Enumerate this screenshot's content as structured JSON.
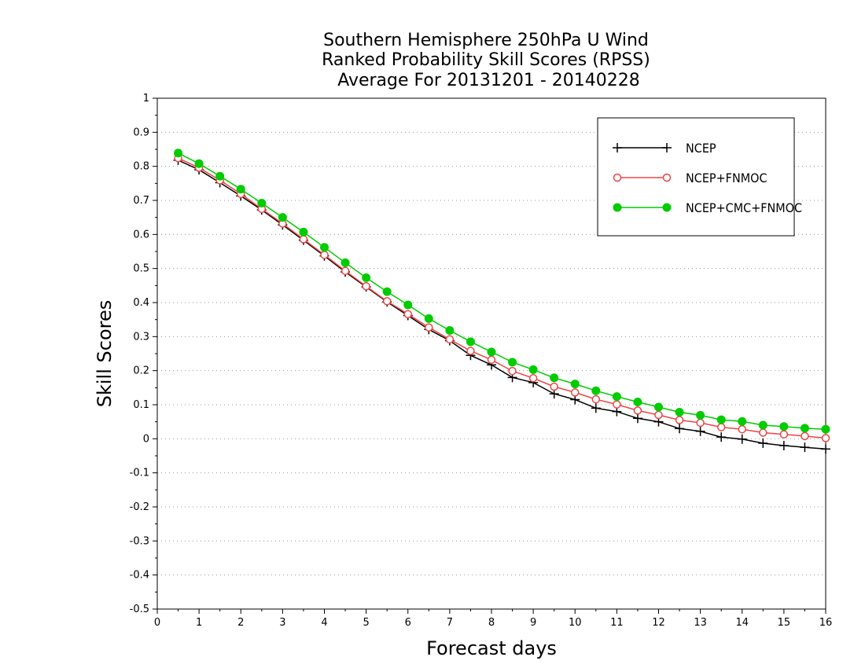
{
  "chart_data": {
    "type": "line",
    "title": [
      "Southern Hemisphere 250hPa U Wind",
      "Ranked Probability Skill Scores (RPSS)",
      " Average For 20131201 - 20140228"
    ],
    "xlabel": "Forecast days",
    "ylabel": "Skill Scores",
    "xlim": [
      0,
      16
    ],
    "ylim": [
      -0.5,
      1
    ],
    "xticks": [
      "0",
      "1",
      "2",
      "3",
      "4",
      "5",
      "6",
      "7",
      "8",
      "9",
      "10",
      "11",
      "12",
      "13",
      "14",
      "15",
      "16"
    ],
    "yticks": [
      "-0.5",
      "-0.4",
      "-0.3",
      "-0.2",
      "-0.1",
      "0",
      "0.1",
      "0.2",
      "0.3",
      "0.4",
      "0.5",
      "0.6",
      "0.7",
      "0.8",
      "0.9",
      "1"
    ],
    "grid": true,
    "legend_position": "top-right",
    "x": [
      0.5,
      1,
      1.5,
      2,
      2.5,
      3,
      3.5,
      4,
      4.5,
      5,
      5.5,
      6,
      6.5,
      7,
      7.5,
      8,
      8.5,
      9,
      9.5,
      10,
      10.5,
      11,
      11.5,
      12,
      12.5,
      13,
      13.5,
      14,
      14.5,
      15,
      15.5,
      16
    ],
    "series": [
      {
        "name": "NCEP",
        "color": "#000000",
        "marker": "plus",
        "values": [
          0.818,
          0.79,
          0.752,
          0.713,
          0.672,
          0.628,
          0.583,
          0.537,
          0.49,
          0.446,
          0.402,
          0.362,
          0.321,
          0.288,
          0.245,
          0.217,
          0.18,
          0.165,
          0.132,
          0.115,
          0.09,
          0.08,
          0.06,
          0.05,
          0.03,
          0.022,
          0.005,
          -0.001,
          -0.013,
          -0.02,
          -0.025,
          -0.03
        ]
      },
      {
        "name": "NCEP+FNMOC",
        "color": "#ee4444",
        "marker": "open-circle",
        "values": [
          0.824,
          0.796,
          0.759,
          0.719,
          0.675,
          0.632,
          0.586,
          0.54,
          0.493,
          0.448,
          0.404,
          0.366,
          0.327,
          0.292,
          0.258,
          0.232,
          0.199,
          0.178,
          0.153,
          0.136,
          0.116,
          0.101,
          0.083,
          0.07,
          0.055,
          0.047,
          0.034,
          0.028,
          0.018,
          0.013,
          0.008,
          0.002
        ]
      },
      {
        "name": "NCEP+CMC+FNMOC",
        "color": "#00cc00",
        "marker": "filled-circle",
        "values": [
          0.839,
          0.808,
          0.771,
          0.733,
          0.692,
          0.65,
          0.607,
          0.562,
          0.517,
          0.473,
          0.432,
          0.393,
          0.353,
          0.318,
          0.285,
          0.255,
          0.225,
          0.203,
          0.179,
          0.161,
          0.141,
          0.124,
          0.108,
          0.093,
          0.078,
          0.069,
          0.056,
          0.051,
          0.04,
          0.036,
          0.031,
          0.028
        ]
      }
    ]
  }
}
